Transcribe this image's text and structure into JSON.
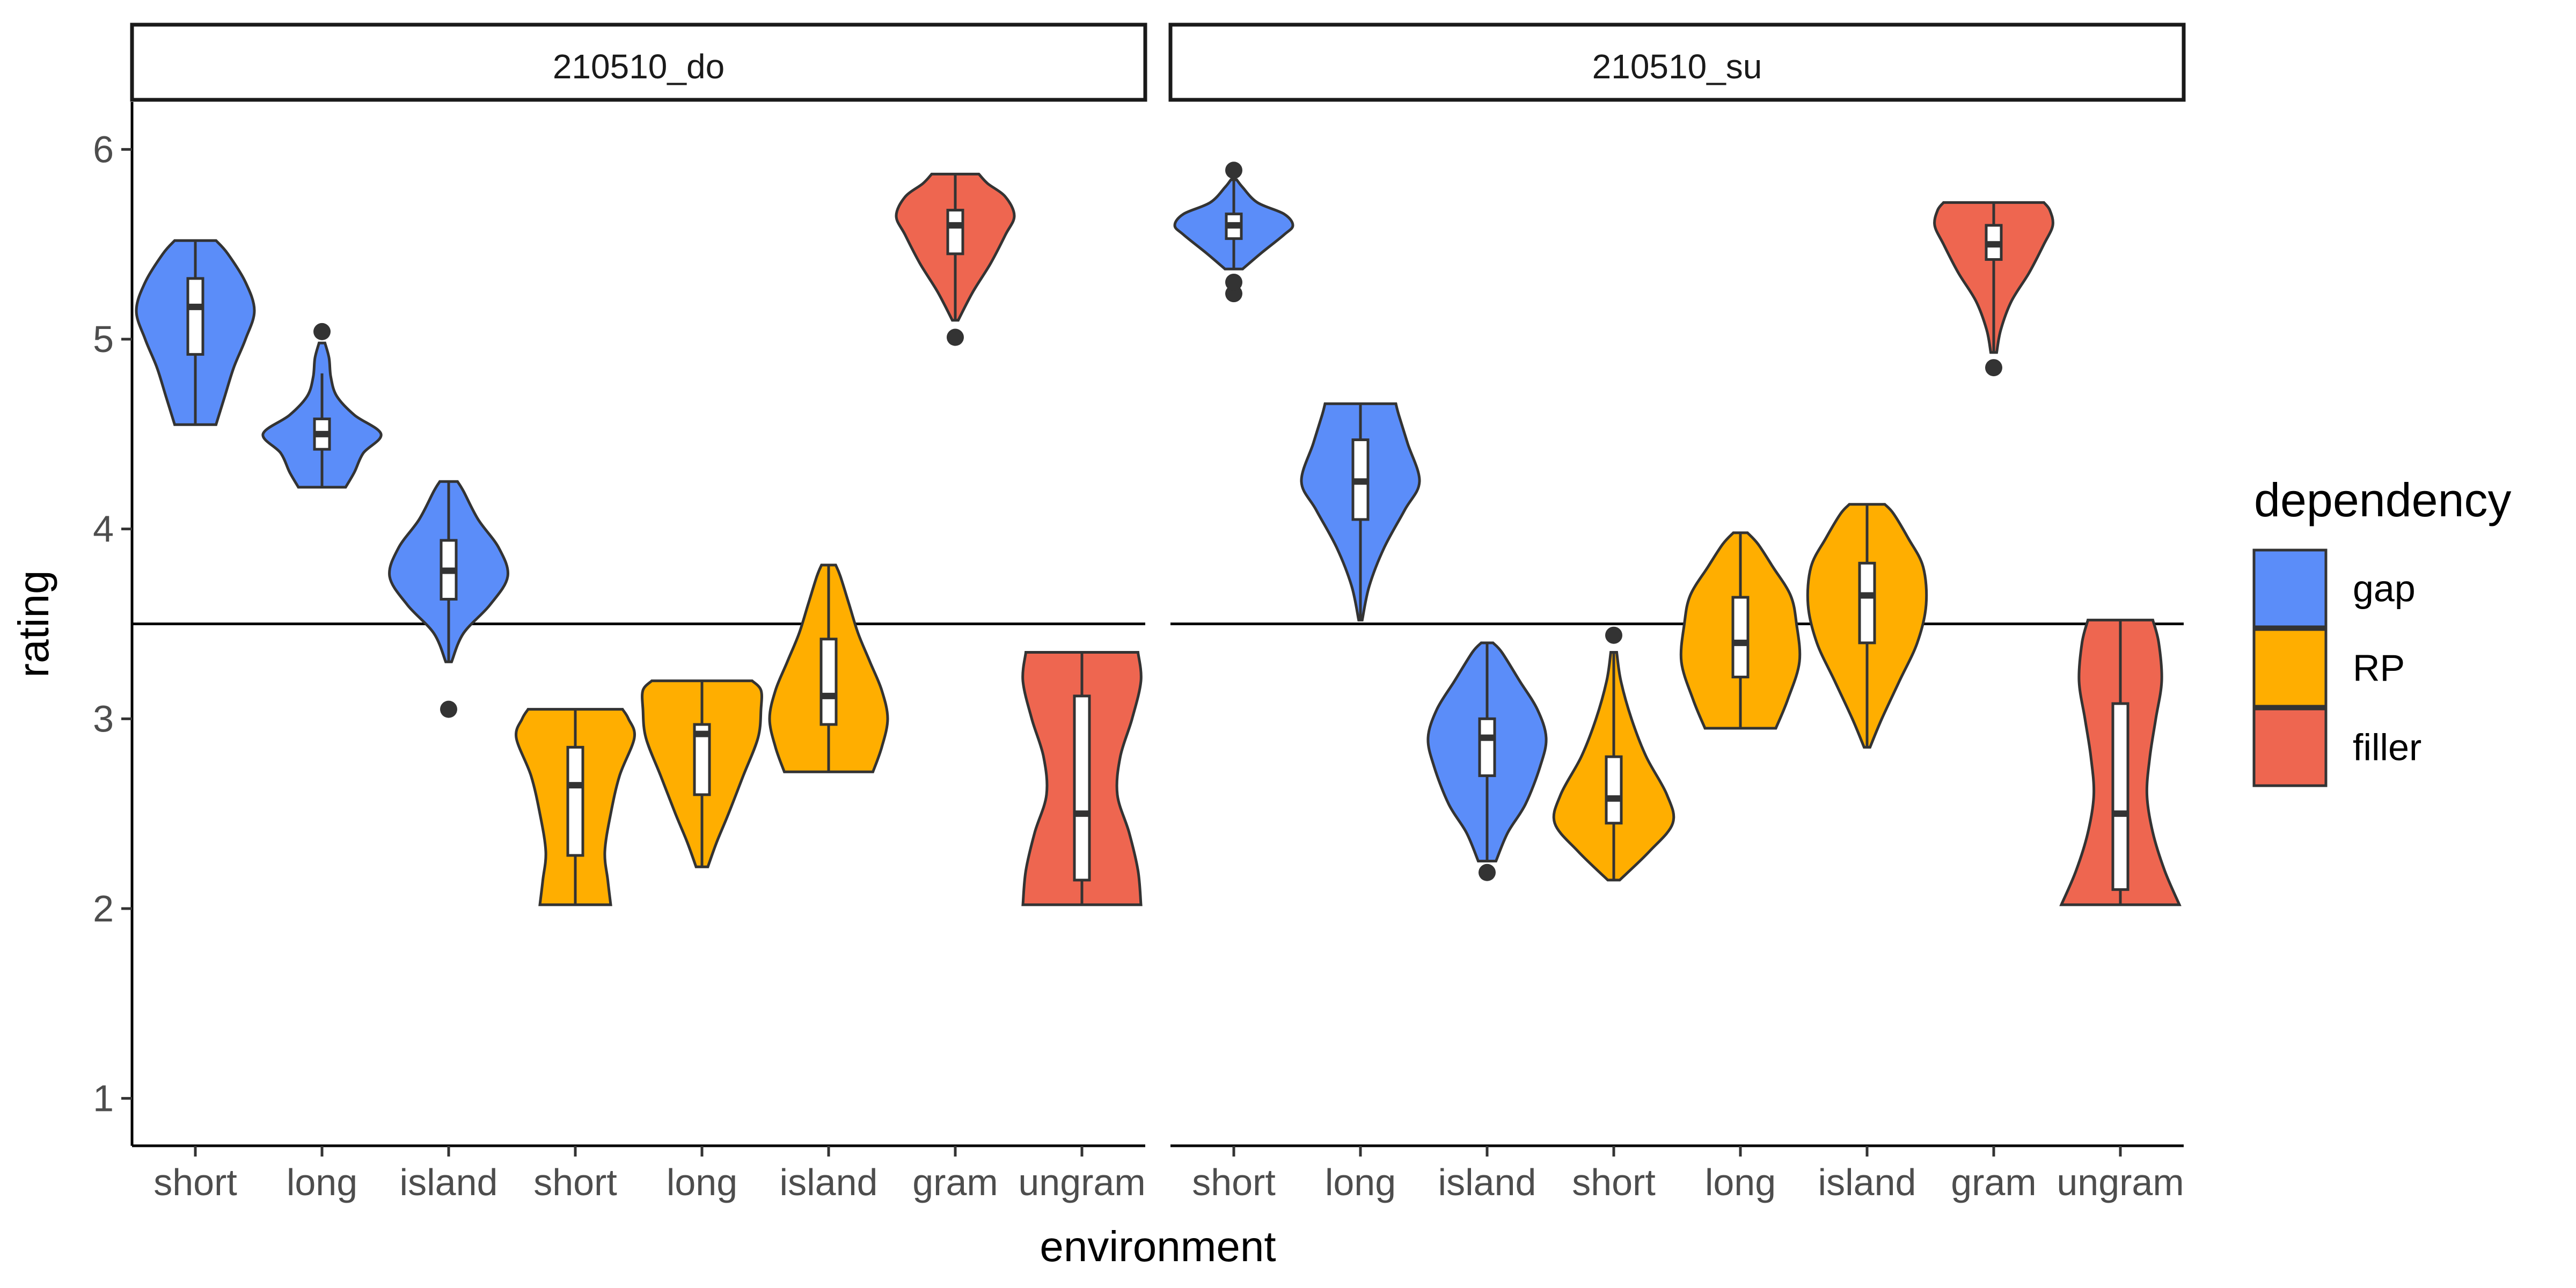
{
  "chart_data": {
    "type": "violin",
    "xlabel": "environment",
    "ylabel": "rating",
    "ylim": [
      0.75,
      6.25
    ],
    "yticks": [
      1,
      2,
      3,
      4,
      5,
      6
    ],
    "reference_line": 3.5,
    "legend": {
      "title": "dependency",
      "placement": "right",
      "entries": [
        {
          "name": "gap",
          "color": "#5B8DF9"
        },
        {
          "name": "RP",
          "color": "#FFAE00"
        },
        {
          "name": "filler",
          "color": "#EE6650"
        }
      ]
    },
    "panels": [
      {
        "strip": "210510_do",
        "groups": [
          {
            "label": "short",
            "dependency": "gap",
            "min": 4.55,
            "max": 5.52,
            "q1": 4.92,
            "median": 5.17,
            "q3": 5.32,
            "wlo": 4.55,
            "whi": 5.52,
            "outliers": [],
            "profile": [
              [
                4.55,
                0.35
              ],
              [
                4.7,
                0.5
              ],
              [
                4.85,
                0.65
              ],
              [
                5.0,
                0.85
              ],
              [
                5.15,
                1.0
              ],
              [
                5.3,
                0.85
              ],
              [
                5.45,
                0.55
              ],
              [
                5.52,
                0.35
              ]
            ]
          },
          {
            "label": "long",
            "dependency": "gap",
            "min": 4.22,
            "max": 4.98,
            "q1": 4.42,
            "median": 4.5,
            "q3": 4.58,
            "wlo": 4.22,
            "whi": 4.82,
            "outliers": [
              5.04
            ],
            "profile": [
              [
                4.22,
                0.4
              ],
              [
                4.3,
                0.55
              ],
              [
                4.4,
                0.7
              ],
              [
                4.5,
                1.0
              ],
              [
                4.6,
                0.55
              ],
              [
                4.7,
                0.25
              ],
              [
                4.8,
                0.15
              ],
              [
                4.9,
                0.12
              ],
              [
                4.98,
                0.05
              ]
            ]
          },
          {
            "label": "island",
            "dependency": "gap",
            "min": 3.3,
            "max": 4.25,
            "q1": 3.63,
            "median": 3.78,
            "q3": 3.94,
            "wlo": 3.3,
            "whi": 4.25,
            "outliers": [
              3.05
            ],
            "profile": [
              [
                3.3,
                0.05
              ],
              [
                3.45,
                0.25
              ],
              [
                3.6,
                0.7
              ],
              [
                3.75,
                1.0
              ],
              [
                3.9,
                0.85
              ],
              [
                4.05,
                0.5
              ],
              [
                4.2,
                0.25
              ],
              [
                4.25,
                0.15
              ]
            ]
          },
          {
            "label": "short",
            "dependency": "RP",
            "min": 2.02,
            "max": 3.05,
            "q1": 2.28,
            "median": 2.65,
            "q3": 2.85,
            "wlo": 2.02,
            "whi": 3.05,
            "outliers": [],
            "profile": [
              [
                2.02,
                0.6
              ],
              [
                2.15,
                0.55
              ],
              [
                2.3,
                0.5
              ],
              [
                2.5,
                0.6
              ],
              [
                2.7,
                0.75
              ],
              [
                2.9,
                1.0
              ],
              [
                3.0,
                0.9
              ],
              [
                3.05,
                0.8
              ]
            ]
          },
          {
            "label": "long",
            "dependency": "RP",
            "min": 2.22,
            "max": 3.2,
            "q1": 2.6,
            "median": 2.92,
            "q3": 2.97,
            "wlo": 2.22,
            "whi": 3.2,
            "outliers": [],
            "profile": [
              [
                2.22,
                0.1
              ],
              [
                2.35,
                0.25
              ],
              [
                2.5,
                0.45
              ],
              [
                2.7,
                0.7
              ],
              [
                2.9,
                0.95
              ],
              [
                3.05,
                1.0
              ],
              [
                3.15,
                1.0
              ],
              [
                3.2,
                0.85
              ]
            ]
          },
          {
            "label": "island",
            "dependency": "RP",
            "min": 2.72,
            "max": 3.81,
            "q1": 2.97,
            "median": 3.12,
            "q3": 3.42,
            "wlo": 2.72,
            "whi": 3.81,
            "outliers": [],
            "profile": [
              [
                2.72,
                0.75
              ],
              [
                2.85,
                0.9
              ],
              [
                3.0,
                1.0
              ],
              [
                3.15,
                0.9
              ],
              [
                3.3,
                0.7
              ],
              [
                3.45,
                0.5
              ],
              [
                3.6,
                0.35
              ],
              [
                3.75,
                0.2
              ],
              [
                3.81,
                0.12
              ]
            ]
          },
          {
            "label": "gram",
            "dependency": "filler",
            "min": 5.1,
            "max": 5.87,
            "q1": 5.45,
            "median": 5.6,
            "q3": 5.68,
            "wlo": 5.1,
            "whi": 5.87,
            "outliers": [
              5.01
            ],
            "profile": [
              [
                5.1,
                0.05
              ],
              [
                5.25,
                0.3
              ],
              [
                5.4,
                0.6
              ],
              [
                5.55,
                0.85
              ],
              [
                5.65,
                1.0
              ],
              [
                5.75,
                0.85
              ],
              [
                5.82,
                0.55
              ],
              [
                5.87,
                0.4
              ]
            ]
          },
          {
            "label": "ungram",
            "dependency": "filler",
            "min": 2.02,
            "max": 3.35,
            "q1": 2.15,
            "median": 2.5,
            "q3": 3.12,
            "wlo": 2.02,
            "whi": 3.35,
            "outliers": [],
            "profile": [
              [
                2.02,
                1.0
              ],
              [
                2.2,
                0.95
              ],
              [
                2.4,
                0.8
              ],
              [
                2.6,
                0.6
              ],
              [
                2.8,
                0.65
              ],
              [
                3.0,
                0.85
              ],
              [
                3.2,
                1.0
              ],
              [
                3.35,
                0.95
              ]
            ]
          }
        ]
      },
      {
        "strip": "210510_su",
        "groups": [
          {
            "label": "short",
            "dependency": "gap",
            "min": 5.37,
            "max": 5.84,
            "q1": 5.53,
            "median": 5.6,
            "q3": 5.66,
            "wlo": 5.37,
            "whi": 5.84,
            "outliers": [
              5.24,
              5.3,
              5.89
            ],
            "profile": [
              [
                5.37,
                0.15
              ],
              [
                5.45,
                0.45
              ],
              [
                5.55,
                0.85
              ],
              [
                5.6,
                1.0
              ],
              [
                5.66,
                0.85
              ],
              [
                5.72,
                0.4
              ],
              [
                5.8,
                0.15
              ],
              [
                5.84,
                0.05
              ]
            ]
          },
          {
            "label": "long",
            "dependency": "gap",
            "min": 3.52,
            "max": 4.66,
            "q1": 4.05,
            "median": 4.25,
            "q3": 4.47,
            "wlo": 3.52,
            "whi": 4.66,
            "outliers": [],
            "profile": [
              [
                3.52,
                0.03
              ],
              [
                3.7,
                0.15
              ],
              [
                3.9,
                0.4
              ],
              [
                4.1,
                0.75
              ],
              [
                4.25,
                1.0
              ],
              [
                4.45,
                0.8
              ],
              [
                4.6,
                0.65
              ],
              [
                4.66,
                0.6
              ]
            ]
          },
          {
            "label": "island",
            "dependency": "gap",
            "min": 2.25,
            "max": 3.4,
            "q1": 2.7,
            "median": 2.9,
            "q3": 3.0,
            "wlo": 2.25,
            "whi": 3.4,
            "outliers": [
              2.19
            ],
            "profile": [
              [
                2.25,
                0.15
              ],
              [
                2.4,
                0.35
              ],
              [
                2.55,
                0.65
              ],
              [
                2.75,
                0.9
              ],
              [
                2.9,
                1.0
              ],
              [
                3.05,
                0.85
              ],
              [
                3.2,
                0.55
              ],
              [
                3.35,
                0.25
              ],
              [
                3.4,
                0.1
              ]
            ]
          },
          {
            "label": "short",
            "dependency": "RP",
            "min": 2.15,
            "max": 3.35,
            "q1": 2.45,
            "median": 2.58,
            "q3": 2.8,
            "wlo": 2.15,
            "whi": 3.35,
            "outliers": [
              3.44
            ],
            "profile": [
              [
                2.15,
                0.1
              ],
              [
                2.3,
                0.6
              ],
              [
                2.45,
                1.0
              ],
              [
                2.6,
                0.9
              ],
              [
                2.8,
                0.55
              ],
              [
                3.0,
                0.3
              ],
              [
                3.2,
                0.12
              ],
              [
                3.35,
                0.05
              ]
            ]
          },
          {
            "label": "long",
            "dependency": "RP",
            "min": 2.95,
            "max": 3.98,
            "q1": 3.22,
            "median": 3.4,
            "q3": 3.64,
            "wlo": 2.95,
            "whi": 3.98,
            "outliers": [],
            "profile": [
              [
                2.95,
                0.6
              ],
              [
                3.1,
                0.8
              ],
              [
                3.3,
                1.0
              ],
              [
                3.5,
                0.95
              ],
              [
                3.65,
                0.85
              ],
              [
                3.8,
                0.55
              ],
              [
                3.92,
                0.3
              ],
              [
                3.98,
                0.12
              ]
            ]
          },
          {
            "label": "island",
            "dependency": "RP",
            "min": 2.85,
            "max": 4.13,
            "q1": 3.4,
            "median": 3.65,
            "q3": 3.82,
            "wlo": 2.85,
            "whi": 4.13,
            "outliers": [],
            "profile": [
              [
                2.85,
                0.05
              ],
              [
                3.0,
                0.25
              ],
              [
                3.2,
                0.55
              ],
              [
                3.4,
                0.85
              ],
              [
                3.6,
                1.0
              ],
              [
                3.8,
                0.95
              ],
              [
                3.95,
                0.7
              ],
              [
                4.08,
                0.45
              ],
              [
                4.13,
                0.3
              ]
            ]
          },
          {
            "label": "gram",
            "dependency": "filler",
            "min": 4.93,
            "max": 5.72,
            "q1": 5.42,
            "median": 5.5,
            "q3": 5.6,
            "wlo": 4.93,
            "whi": 5.72,
            "outliers": [
              4.85
            ],
            "profile": [
              [
                4.93,
                0.05
              ],
              [
                5.05,
                0.12
              ],
              [
                5.2,
                0.3
              ],
              [
                5.35,
                0.6
              ],
              [
                5.5,
                0.85
              ],
              [
                5.6,
                1.0
              ],
              [
                5.68,
                0.95
              ],
              [
                5.72,
                0.85
              ]
            ]
          },
          {
            "label": "ungram",
            "dependency": "filler",
            "min": 2.02,
            "max": 3.52,
            "q1": 2.1,
            "median": 2.5,
            "q3": 3.08,
            "wlo": 2.02,
            "whi": 3.52,
            "outliers": [],
            "profile": [
              [
                2.02,
                1.0
              ],
              [
                2.2,
                0.75
              ],
              [
                2.4,
                0.55
              ],
              [
                2.6,
                0.45
              ],
              [
                2.8,
                0.5
              ],
              [
                3.0,
                0.6
              ],
              [
                3.2,
                0.7
              ],
              [
                3.4,
                0.65
              ],
              [
                3.52,
                0.55
              ]
            ]
          }
        ]
      }
    ]
  }
}
